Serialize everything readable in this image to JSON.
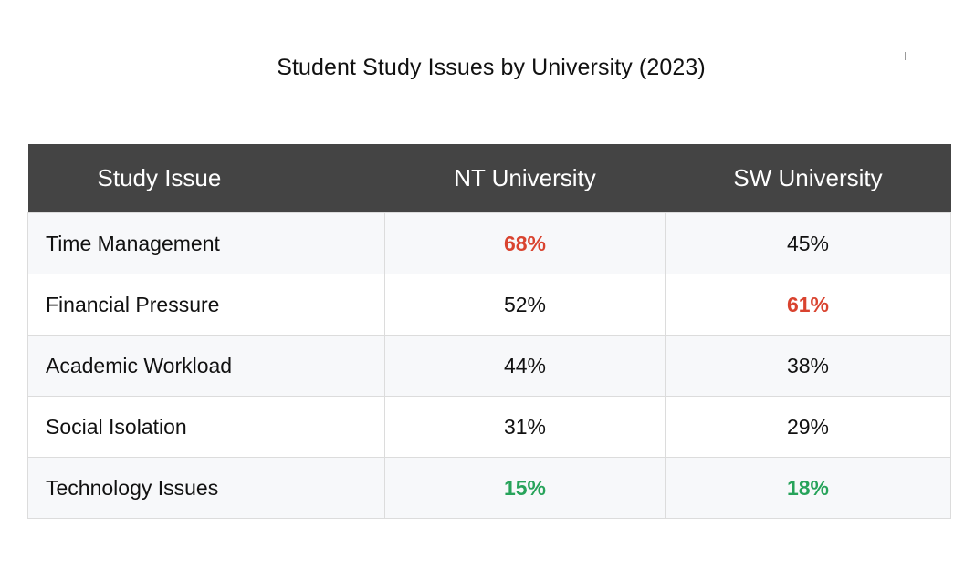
{
  "title": "Student Study Issues by University (2023)",
  "colors": {
    "header_bg": "#444444",
    "highlight_high": "#d9432f",
    "highlight_low": "#27a35a",
    "row_alt_bg": "#f7f8fa"
  },
  "chart_data": {
    "type": "table",
    "title": "Student Study Issues by University (2023)",
    "columns": [
      "Study Issue",
      "NT University",
      "SW University"
    ],
    "rows": [
      {
        "issue": "Time Management",
        "nt": "68%",
        "sw": "45%",
        "nt_highlight": "high",
        "sw_highlight": ""
      },
      {
        "issue": "Financial Pressure",
        "nt": "52%",
        "sw": "61%",
        "nt_highlight": "",
        "sw_highlight": "high"
      },
      {
        "issue": "Academic Workload",
        "nt": "44%",
        "sw": "38%",
        "nt_highlight": "",
        "sw_highlight": ""
      },
      {
        "issue": "Social Isolation",
        "nt": "31%",
        "sw": "29%",
        "nt_highlight": "",
        "sw_highlight": ""
      },
      {
        "issue": "Technology Issues",
        "nt": "15%",
        "sw": "18%",
        "nt_highlight": "low",
        "sw_highlight": "low"
      }
    ]
  }
}
